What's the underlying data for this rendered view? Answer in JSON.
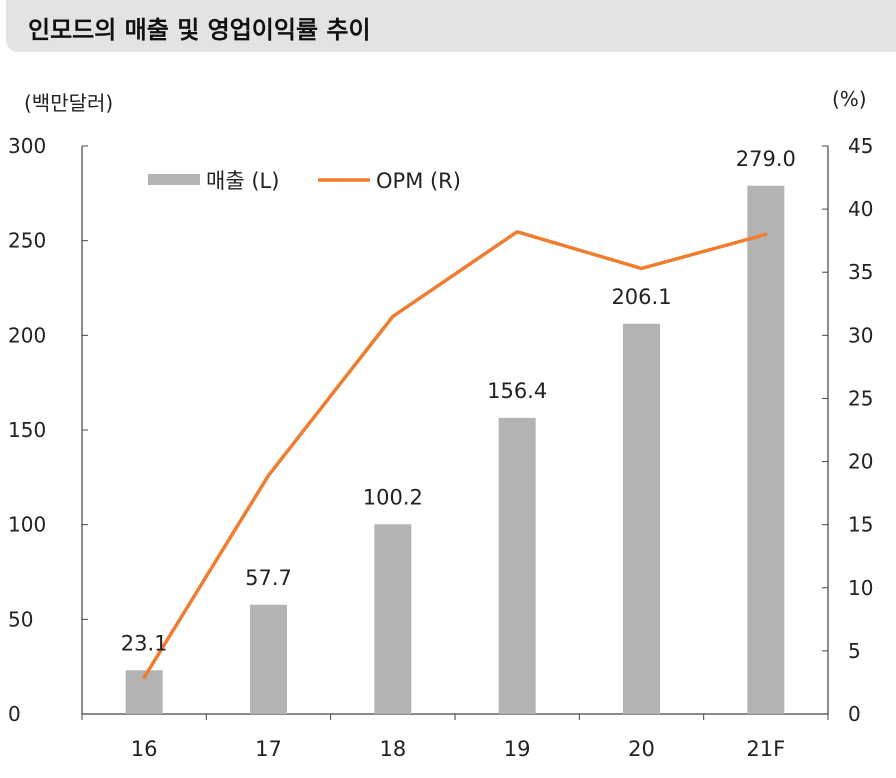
{
  "title": "인모드의 매출 및 영업이익률 추이",
  "chart_data": {
    "type": "bar+line",
    "categories": [
      "16",
      "17",
      "18",
      "19",
      "20",
      "21F"
    ],
    "series": [
      {
        "name": "매출 (L)",
        "type": "bar",
        "axis": "left",
        "values": [
          23.1,
          57.7,
          100.2,
          156.4,
          206.1,
          279.0
        ],
        "labels": [
          "23.1",
          "57.7",
          "100.2",
          "156.4",
          "206.1",
          "279.0"
        ],
        "color": "#b3b3b3"
      },
      {
        "name": "OPM (R)",
        "type": "line",
        "axis": "right",
        "values": [
          2.9,
          18.9,
          31.5,
          38.2,
          35.3,
          38.0
        ],
        "color": "#ee7d2f"
      }
    ],
    "y_left": {
      "unit": "(백만달러)",
      "min": 0,
      "max": 300,
      "ticks": [
        "0",
        "50",
        "100",
        "150",
        "200",
        "250",
        "300"
      ]
    },
    "y_right": {
      "unit": "(%)",
      "min": 0,
      "max": 45,
      "ticks": [
        "0",
        "5",
        "10",
        "15",
        "20",
        "25",
        "30",
        "35",
        "40",
        "45"
      ]
    },
    "legend": {
      "placement": "top-left"
    },
    "grid": false
  }
}
